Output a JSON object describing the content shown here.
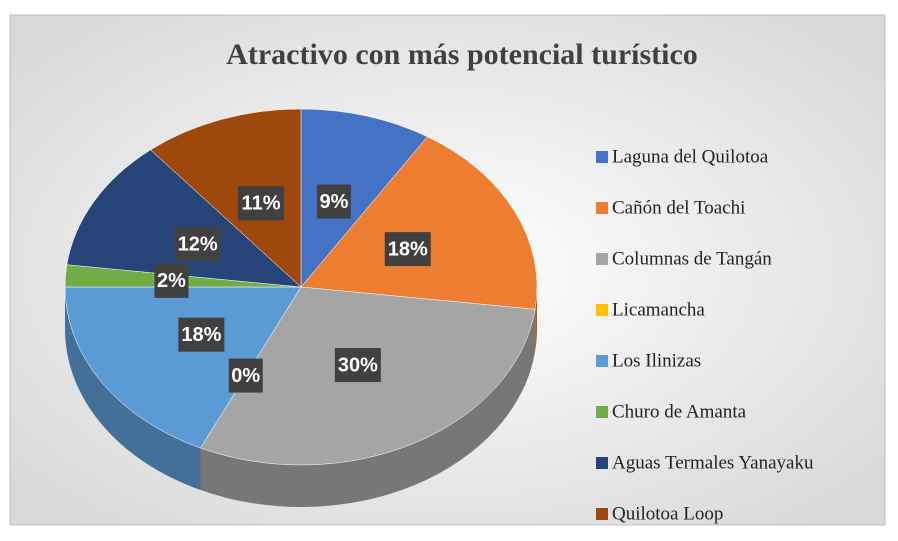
{
  "chart_data": {
    "type": "pie",
    "title": "Atractivo con más potencial turístico",
    "categories": [
      "Laguna del Quilotoa",
      "Cañón del Toachi",
      "Columnas de Tangán",
      "Licamancha",
      "Los Ilinizas",
      "Churo de Amanta",
      "Aguas Termales Yanayaku",
      "Quilotoa Loop"
    ],
    "values": [
      9,
      18,
      30,
      0,
      18,
      2,
      12,
      11
    ],
    "value_labels": [
      "9%",
      "18%",
      "30%",
      "0%",
      "18%",
      "2%",
      "12%",
      "11%"
    ],
    "colors": [
      "#4472c4",
      "#ed7d31",
      "#a5a5a5",
      "#ffc000",
      "#5b9bd5",
      "#70ad47",
      "#264478",
      "#9e480e"
    ],
    "legend": "right"
  }
}
